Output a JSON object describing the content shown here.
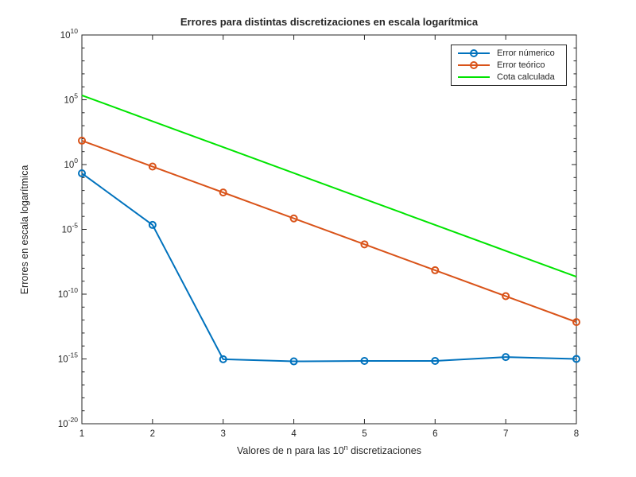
{
  "title": "Errores para distintas discretizaciones en escala logarítmica",
  "ylabel": "Errores en escala logarítmica",
  "xlabel": {
    "prefix": "Valores de n para las 10",
    "sup": "n",
    "suffix": " discretizaciones"
  },
  "colors": {
    "axis": "#262626",
    "background": "#ffffff",
    "blue": "#0072BD",
    "orange": "#D95319",
    "green": "#00E400"
  },
  "chart_data": {
    "type": "line",
    "x": [
      1,
      2,
      3,
      4,
      5,
      6,
      7,
      8
    ],
    "xlim": [
      1,
      8
    ],
    "x_tick_labels": [
      "1",
      "2",
      "3",
      "4",
      "5",
      "6",
      "7",
      "8"
    ],
    "y_scale": "log10",
    "ylim_exponents": [
      -20,
      10
    ],
    "y_major_tick_exponents": [
      10,
      5,
      0,
      -5,
      -10,
      -15,
      -20
    ],
    "y_minor_ticks_every_decade": true,
    "grid": false,
    "legend_position": "top-right",
    "series": [
      {
        "name": "Error númerico",
        "slug": "error-numerico",
        "color": "#0072BD",
        "marker": "circle",
        "values": [
          0.21,
          2.2e-05,
          9.5e-16,
          6.5e-16,
          7e-16,
          7e-16,
          1.4e-15,
          1e-15
        ]
      },
      {
        "name": "Error teórico",
        "slug": "error-teorico",
        "color": "#D95319",
        "marker": "circle",
        "values": [
          70,
          0.7,
          0.007,
          7e-05,
          7e-07,
          7e-09,
          7e-11,
          7e-13
        ]
      },
      {
        "name": "Cota calculada",
        "slug": "cota-calculada",
        "color": "#00E400",
        "marker": "none",
        "values": [
          220000.0,
          2200.0,
          22,
          0.22,
          0.0022,
          2.2e-05,
          2.2e-07,
          2.2e-09
        ]
      }
    ]
  }
}
